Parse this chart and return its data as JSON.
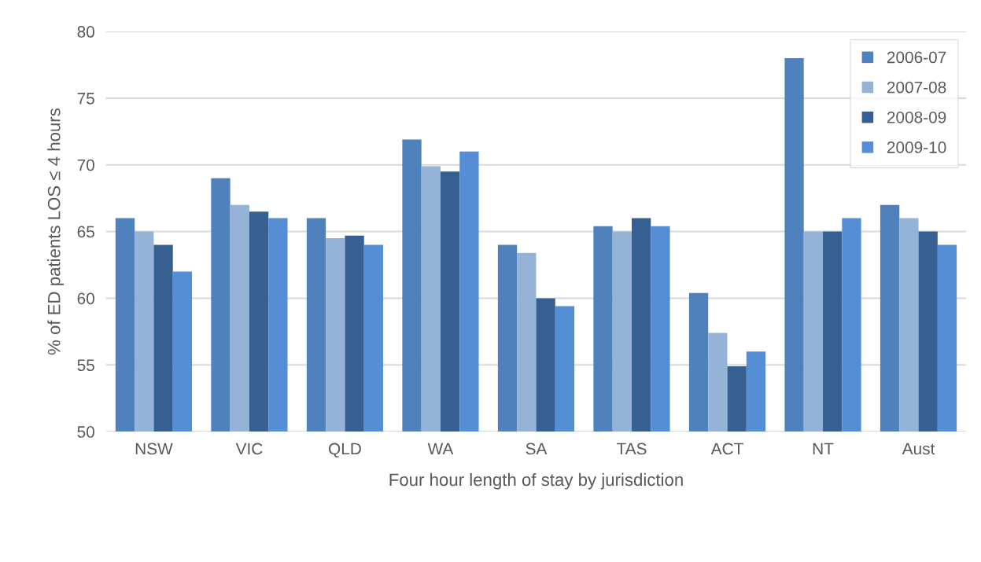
{
  "chart_data": {
    "type": "bar",
    "xlabel": "Four hour length of stay by jurisdiction",
    "ylabel": "% of ED patients LOS ≤ 4 hours",
    "categories": [
      "NSW",
      "VIC",
      "QLD",
      "WA",
      "SA",
      "TAS",
      "ACT",
      "NT",
      "Aust"
    ],
    "series": [
      {
        "name": "2006-07",
        "color": "#4f81bd",
        "values": [
          66,
          69,
          66,
          71.9,
          64,
          65.4,
          60.4,
          78,
          67
        ]
      },
      {
        "name": "2007-08",
        "color": "#95b3d7",
        "values": [
          65,
          67,
          64.5,
          69.9,
          63.4,
          65,
          57.4,
          65,
          66
        ]
      },
      {
        "name": "2008-09",
        "color": "#366092",
        "values": [
          64,
          66.5,
          64.7,
          69.5,
          60,
          66,
          54.9,
          65,
          65
        ]
      },
      {
        "name": "2009-10",
        "color": "#558ed5",
        "values": [
          62,
          66,
          64,
          71,
          59.4,
          65.4,
          56,
          66,
          64
        ]
      }
    ],
    "ylim": [
      50,
      80
    ],
    "yticks": [
      50,
      55,
      60,
      65,
      70,
      75,
      80
    ],
    "grid": "y",
    "legend": "top right"
  }
}
